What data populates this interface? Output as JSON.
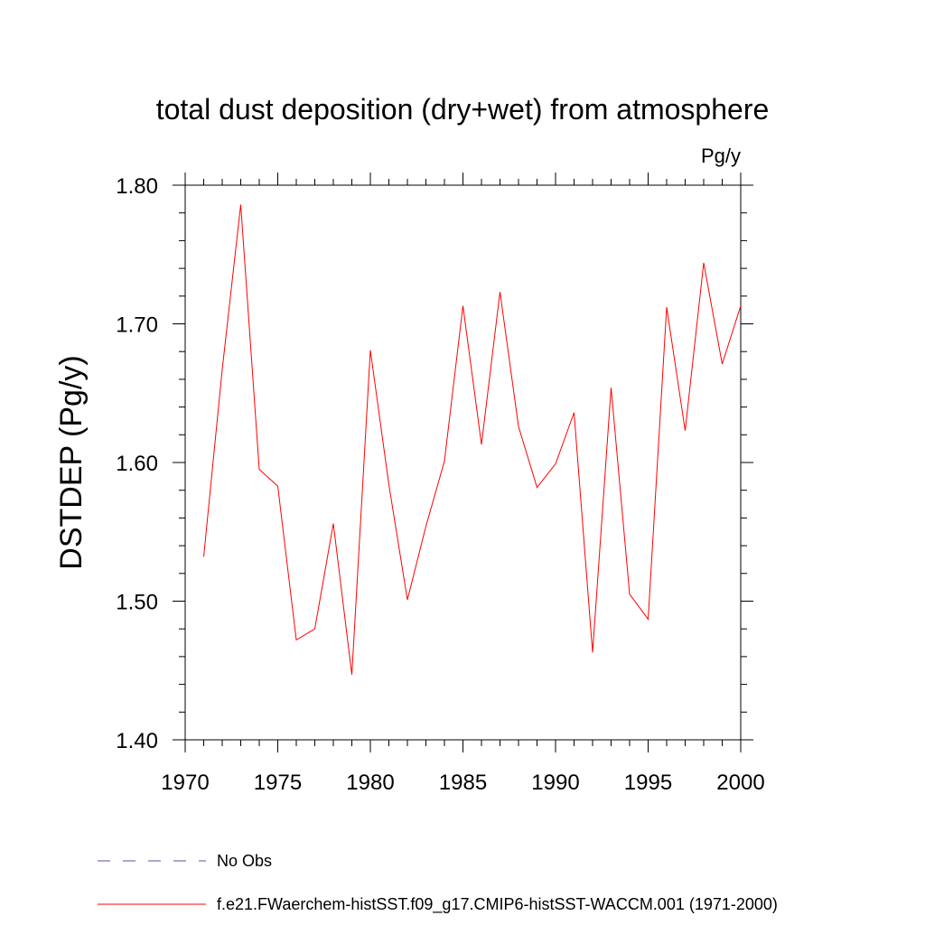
{
  "chart_data": {
    "type": "line",
    "title": "total dust deposition (dry+wet) from atmosphere",
    "units_label": "Pg/y",
    "ylabel": "DSTDEP  (Pg/y)",
    "xlabel": "",
    "xlim": [
      1970,
      2000
    ],
    "ylim": [
      1.4,
      1.8
    ],
    "x_ticks": [
      1970,
      1975,
      1980,
      1985,
      1990,
      1995,
      2000
    ],
    "x_tick_labels": [
      "1970",
      "1975",
      "1980",
      "1985",
      "1990",
      "1995",
      "2000"
    ],
    "y_ticks": [
      1.4,
      1.5,
      1.6,
      1.7,
      1.8
    ],
    "y_tick_labels": [
      "1.40",
      "1.50",
      "1.60",
      "1.70",
      "1.80"
    ],
    "grid": false,
    "legend_position": "bottom-left",
    "series": [
      {
        "name": "f.e21.FWaerchem-histSST.f09_g17.CMIP6-histSST-WACCM.001 (1971-2000)",
        "color": "#ff0000",
        "style": "solid",
        "x": [
          1971,
          1972,
          1973,
          1974,
          1975,
          1976,
          1977,
          1978,
          1979,
          1980,
          1981,
          1982,
          1983,
          1984,
          1985,
          1986,
          1987,
          1988,
          1989,
          1990,
          1991,
          1992,
          1993,
          1994,
          1995,
          1996,
          1997,
          1998,
          1999,
          2000
        ],
        "values": [
          1.532,
          1.667,
          1.786,
          1.595,
          1.583,
          1.472,
          1.48,
          1.556,
          1.447,
          1.681,
          1.584,
          1.501,
          1.554,
          1.601,
          1.713,
          1.613,
          1.723,
          1.626,
          1.582,
          1.599,
          1.636,
          1.463,
          1.654,
          1.505,
          1.487,
          1.712,
          1.623,
          1.744,
          1.671,
          1.713
        ]
      }
    ],
    "legend": [
      {
        "label": "No Obs",
        "color": "#5a4fa0",
        "style": "dashed"
      },
      {
        "label": "f.e21.FWaerchem-histSST.f09_g17.CMIP6-histSST-WACCM.001 (1971-2000)",
        "color": "#ff0000",
        "style": "solid"
      }
    ]
  }
}
